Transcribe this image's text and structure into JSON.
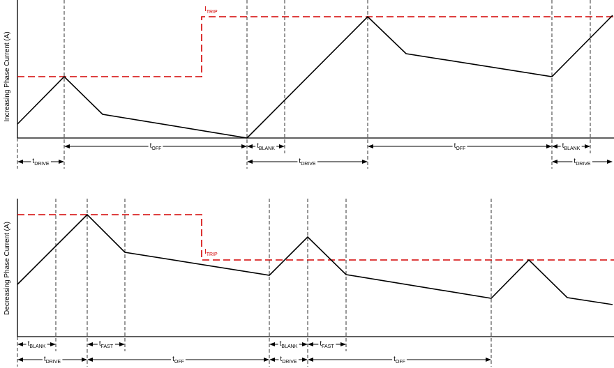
{
  "top": {
    "axis_label": "Increasing Phase Current (A)",
    "trip_label": {
      "main": "I",
      "sub": "TRIP"
    },
    "intervals": [
      {
        "main": "t",
        "sub": "DRIVE"
      },
      {
        "main": "t",
        "sub": "OFF"
      },
      {
        "main": "t",
        "sub": "BLANK"
      },
      {
        "main": "t",
        "sub": "DRIVE"
      },
      {
        "main": "t",
        "sub": "OFF"
      },
      {
        "main": "t",
        "sub": "BLANK"
      },
      {
        "main": "t",
        "sub": "DRIVE"
      }
    ]
  },
  "bottom": {
    "axis_label": "Decreasing Phase Current (A)",
    "trip_label": {
      "main": "I",
      "sub": "TRIP"
    },
    "intervals": [
      {
        "main": "t",
        "sub": "BLANK"
      },
      {
        "main": "t",
        "sub": "DRIVE"
      },
      {
        "main": "t",
        "sub": "FAST"
      },
      {
        "main": "t",
        "sub": "OFF"
      },
      {
        "main": "t",
        "sub": "BLANK"
      },
      {
        "main": "t",
        "sub": "DRIVE"
      },
      {
        "main": "t",
        "sub": "FAST"
      },
      {
        "main": "t",
        "sub": "OFF"
      }
    ]
  }
}
